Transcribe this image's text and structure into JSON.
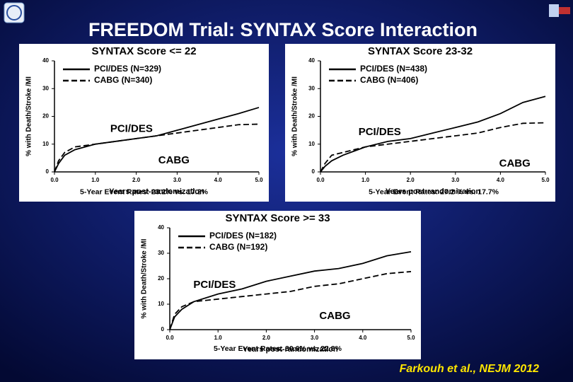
{
  "title": "FREEDOM Trial: SYNTAX Score Interaction",
  "citation": "Farkouh et al., NEJM 2012",
  "chart_data": [
    {
      "type": "line",
      "title": "SYNTAX Score <= 22",
      "x_label": "Years post-randomization",
      "y_label": "% with Death/Stroke /MI",
      "x": [
        0,
        0.1,
        0.25,
        0.5,
        1,
        1.5,
        2,
        2.5,
        3,
        3.5,
        4,
        4.5,
        5
      ],
      "series": [
        {
          "name": "PCI/DES (N=329)",
          "color": "#000000",
          "dash": "solid",
          "values": [
            0,
            3,
            6,
            8,
            10,
            11,
            12,
            13,
            15,
            17,
            19,
            21,
            23.2
          ]
        },
        {
          "name": "CABG (N=340)",
          "color": "#000000",
          "dash": "dashed",
          "values": [
            0,
            4,
            7,
            9,
            10,
            11,
            12,
            13,
            14,
            15,
            16,
            17,
            17.2
          ]
        }
      ],
      "annotations": [
        "PCI/DES",
        "CABG",
        "5-Year Event Rates: 23.2% vs. 17.2%"
      ],
      "xlim": [
        0,
        5
      ],
      "ylim": [
        0,
        40
      ],
      "xticks": [
        {
          "value": 0,
          "label": "0.0"
        },
        {
          "value": 1,
          "label": "1.0"
        },
        {
          "value": 2,
          "label": "2.0"
        },
        {
          "value": 3,
          "label": "3.0"
        },
        {
          "value": 4,
          "label": "4.0"
        },
        {
          "value": 5,
          "label": "5.0"
        }
      ],
      "yticks": [
        0,
        10,
        20,
        30,
        40
      ]
    },
    {
      "type": "line",
      "title": "SYNTAX Score 23-32",
      "x_label": "Years post-randomization",
      "y_label": "% with Death/Stroke /MI",
      "x": [
        0,
        0.1,
        0.25,
        0.5,
        1,
        1.5,
        2,
        2.5,
        3,
        3.5,
        4,
        4.5,
        5
      ],
      "series": [
        {
          "name": "PCI/DES (N=438)",
          "color": "#000000",
          "dash": "solid",
          "values": [
            0,
            2,
            4,
            6,
            9,
            11,
            12,
            14,
            16,
            18,
            21,
            25,
            27.2
          ]
        },
        {
          "name": "CABG (N=406)",
          "color": "#000000",
          "dash": "dashed",
          "values": [
            0,
            3,
            6,
            7,
            9,
            10,
            11,
            12,
            13,
            14,
            16,
            17.5,
            17.7
          ]
        }
      ],
      "annotations": [
        "PCI/DES",
        "CABG",
        "5-Year Event Rates: 27.2 % vs. 17.7%"
      ],
      "xlim": [
        0,
        5
      ],
      "ylim": [
        0,
        40
      ],
      "xticks": [
        {
          "value": 0,
          "label": "0.0"
        },
        {
          "value": 1,
          "label": "1.0"
        },
        {
          "value": 2,
          "label": "2.0"
        },
        {
          "value": 3,
          "label": "3.0"
        },
        {
          "value": 4,
          "label": "4.0"
        },
        {
          "value": 5,
          "label": "5.0"
        }
      ],
      "yticks": [
        0,
        10,
        20,
        30,
        40
      ]
    },
    {
      "type": "line",
      "title": "SYNTAX Score >= 33",
      "x_label": "Years post-randomization",
      "y_label": "% with Death/Stroke /MI",
      "x": [
        0,
        0.1,
        0.25,
        0.5,
        1,
        1.5,
        2,
        2.5,
        3,
        3.5,
        4,
        4.5,
        5
      ],
      "series": [
        {
          "name": "PCI/DES (N=182)",
          "color": "#000000",
          "dash": "solid",
          "values": [
            0,
            5,
            8,
            11,
            14,
            16,
            19,
            21,
            23,
            24,
            26,
            29,
            30.6
          ]
        },
        {
          "name": "CABG (N=192)",
          "color": "#000000",
          "dash": "dashed",
          "values": [
            0,
            6,
            9,
            11,
            12,
            13,
            14,
            15,
            17,
            18,
            20,
            22,
            22.8
          ]
        }
      ],
      "annotations": [
        "PCI/DES",
        "CABG",
        "5-Year Event Rates: 30.6% vs. 22.8%"
      ],
      "xlim": [
        0,
        5
      ],
      "ylim": [
        0,
        40
      ],
      "xticks": [
        {
          "value": 0,
          "label": "0.0"
        },
        {
          "value": 1,
          "label": "1.0"
        },
        {
          "value": 2,
          "label": "2.0"
        },
        {
          "value": 3,
          "label": "3.0"
        },
        {
          "value": 4,
          "label": "4.0"
        },
        {
          "value": 5,
          "label": "5.0"
        }
      ],
      "yticks": [
        0,
        10,
        20,
        30,
        40
      ]
    }
  ]
}
